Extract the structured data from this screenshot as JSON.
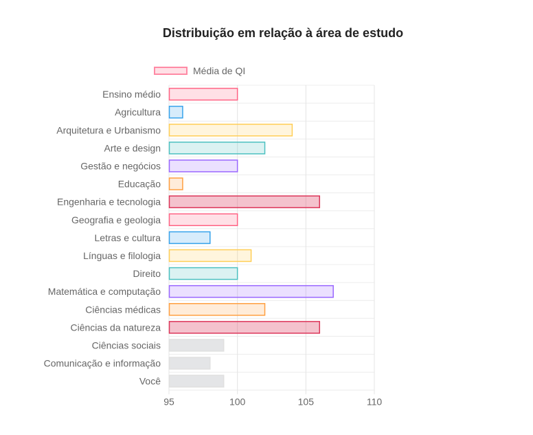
{
  "chart_data": {
    "type": "bar",
    "orientation": "horizontal",
    "title": "Distribuição em relação à área de estudo",
    "legend": {
      "label": "Média de QI",
      "placement": "top-left",
      "color": "#ff6384"
    },
    "categories": [
      "Ensino médio",
      "Agricultura",
      "Arquitetura e Urbanismo",
      "Arte e design",
      "Gestão e negócios",
      "Educação",
      "Engenharia e tecnologia",
      "Geografia e geologia",
      "Letras e cultura",
      "Línguas e filologia",
      "Direito",
      "Matemática e computação",
      "Ciências médicas",
      "Ciências da natureza",
      "Ciências sociais",
      "Comunicação e informação",
      "Você"
    ],
    "series": [
      {
        "name": "Média de QI",
        "values": [
          100,
          96,
          104,
          102,
          100,
          96,
          106,
          100,
          98,
          101,
          100,
          107,
          102,
          106,
          99,
          98,
          99
        ]
      }
    ],
    "xlim": [
      95,
      110
    ],
    "xticks": [
      95,
      100,
      105,
      110
    ],
    "grid": true,
    "colors": {
      "fills": [
        "rgba(255,99,132,0.2)",
        "rgba(54,162,235,0.2)",
        "rgba(255,206,86,0.2)",
        "rgba(75,192,192,0.2)",
        "rgba(153,102,255,0.2)",
        "rgba(255,159,64,0.2)",
        "rgba(220,53,89,0.3)",
        "rgba(255,99,132,0.2)",
        "rgba(54,162,235,0.2)",
        "rgba(255,206,86,0.2)",
        "rgba(75,192,192,0.2)",
        "rgba(153,102,255,0.2)",
        "rgba(255,159,64,0.2)",
        "rgba(220,53,89,0.3)",
        "rgba(201,203,207,0.5)",
        "rgba(201,203,207,0.5)",
        "rgba(201,203,207,0.5)"
      ],
      "borders": [
        "#ff6384",
        "#36a2eb",
        "#ffce56",
        "#4bc0c0",
        "#9966ff",
        "#ff9f40",
        "#dc3559",
        "#ff6384",
        "#36a2eb",
        "#ffce56",
        "#4bc0c0",
        "#9966ff",
        "#ff9f40",
        "#dc3559",
        "#e0e0e0",
        "#e0e0e0",
        "#e0e0e0"
      ]
    }
  }
}
